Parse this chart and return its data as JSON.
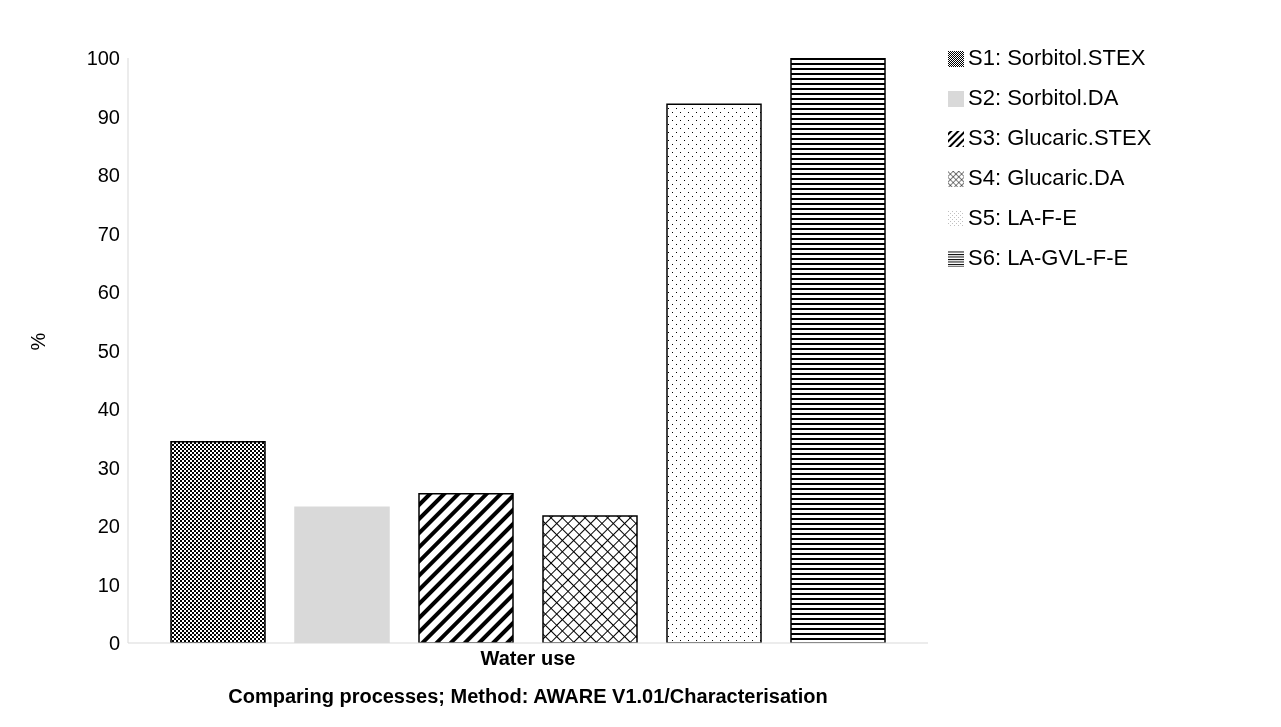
{
  "chart_data": {
    "type": "bar",
    "categories": [
      "Water use"
    ],
    "xlabel": "Comparing processes; Method: AWARE V1.01/Characterisation",
    "ylabel": "%",
    "series": [
      {
        "name": "S1: Sorbitol.STEX",
        "color": "#000000",
        "values": [
          34.4
        ]
      },
      {
        "name": "S2: Sorbitol.DA",
        "color": "#d9d9d9",
        "values": [
          23.2
        ]
      },
      {
        "name": "S3: Glucaric.STEX",
        "color": "#000000",
        "values": [
          25.5
        ]
      },
      {
        "name": "S4: Glucaric.DA",
        "color": "#000000",
        "values": [
          21.7
        ]
      },
      {
        "name": "S5: LA-F-E",
        "color": "#000000",
        "values": [
          92.1
        ]
      },
      {
        "name": "S6: LA-GVL-F-E",
        "color": "#000000",
        "values": [
          100
        ]
      }
    ],
    "ylim": [
      0,
      100
    ],
    "yticks": [
      0,
      10,
      20,
      30,
      40,
      50,
      60,
      70,
      80,
      90,
      100
    ],
    "grid": false,
    "legend": "right"
  }
}
